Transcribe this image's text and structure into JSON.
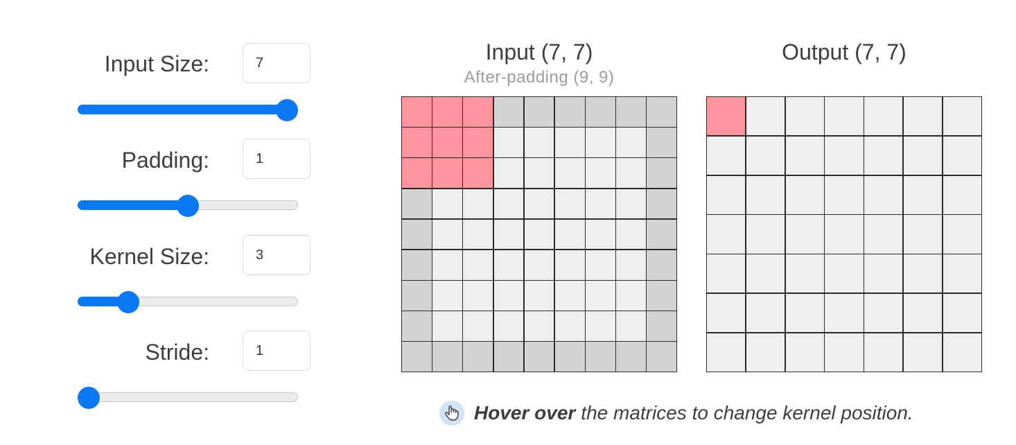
{
  "controls": {
    "input_size": {
      "label": "Input Size:",
      "value": "7",
      "min": 1,
      "max": 7,
      "current": 7
    },
    "padding": {
      "label": "Padding:",
      "value": "1",
      "min": 0,
      "max": 2,
      "current": 1
    },
    "kernel_size": {
      "label": "Kernel Size:",
      "value": "3",
      "min": 2,
      "max": 7,
      "current": 3
    },
    "stride": {
      "label": "Stride:",
      "value": "1",
      "min": 1,
      "max": 5,
      "current": 1
    }
  },
  "input_matrix": {
    "title": "Input (7, 7)",
    "subtitle": "After-padding (9, 9)",
    "size": 7,
    "padding": 1
  },
  "output_matrix": {
    "title": "Output (7, 7)",
    "size": 7
  },
  "kernel": {
    "size": 3,
    "row": 0,
    "col": 0
  },
  "hint": {
    "icon": "pointer-hand-icon",
    "strong": "Hover over",
    "text": "the matrices to change kernel position."
  },
  "colors": {
    "accent": "#0b79f5",
    "kernel": "#fe959f",
    "padding_cell": "#d4d4d4",
    "cell": "#efefef",
    "grid_line": "#2a2a2a"
  }
}
